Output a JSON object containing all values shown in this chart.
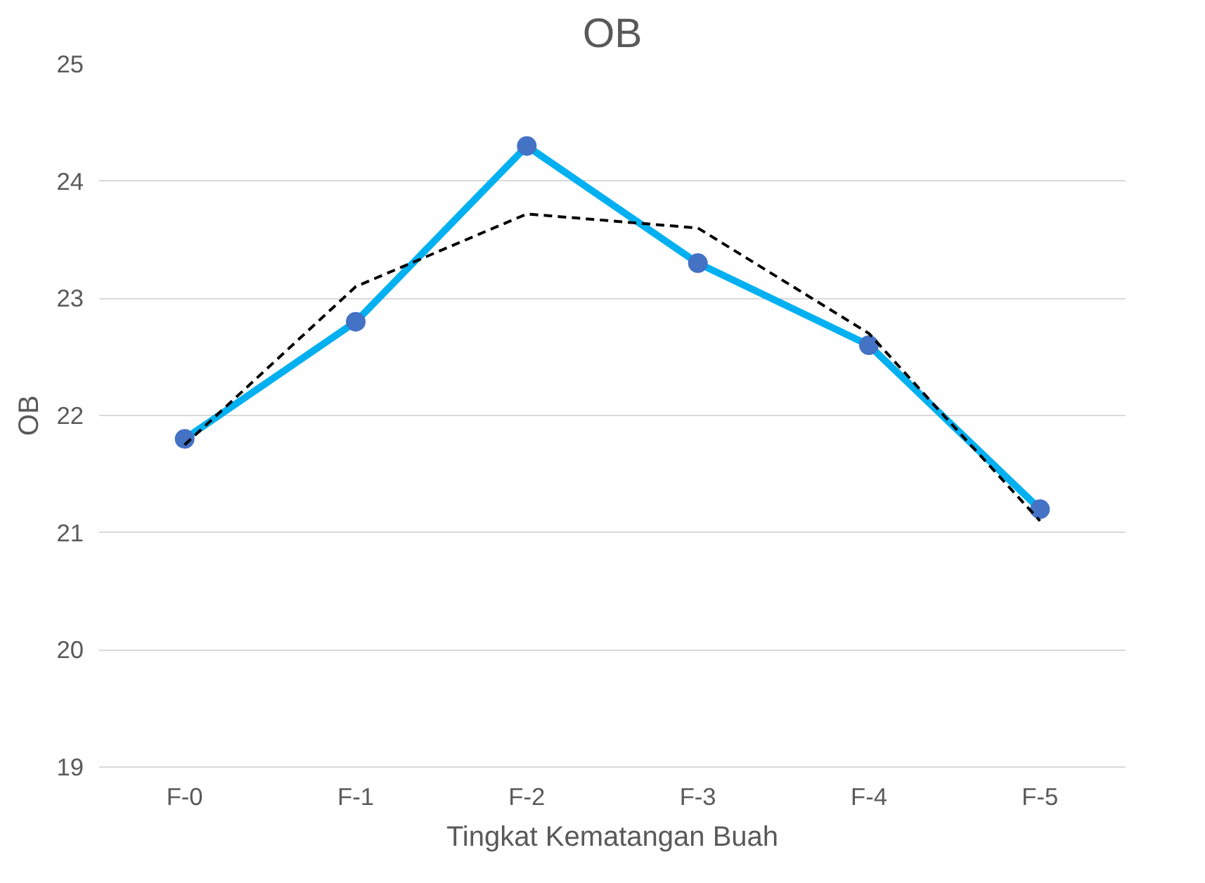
{
  "chart_data": {
    "type": "line",
    "title": "OB",
    "xlabel": "Tingkat Kematangan Buah",
    "ylabel": "OB",
    "categories": [
      "F-0",
      "F-1",
      "F-2",
      "F-3",
      "F-4",
      "F-5"
    ],
    "ylim": [
      19,
      25
    ],
    "yticks": [
      19,
      20,
      21,
      22,
      23,
      24,
      25
    ],
    "grid": "y",
    "series": [
      {
        "color": "#00b0f0",
        "values": [
          21.8,
          22.8,
          24.3,
          23.3,
          22.6,
          21.2
        ],
        "marker": "circle",
        "line_style": "solid"
      },
      {
        "color": "#000000",
        "type": "line",
        "marker": "none",
        "line_style": "dashed",
        "values": [
          21.75,
          23.1,
          23.72,
          23.6,
          22.7,
          21.1
        ]
      }
    ]
  }
}
